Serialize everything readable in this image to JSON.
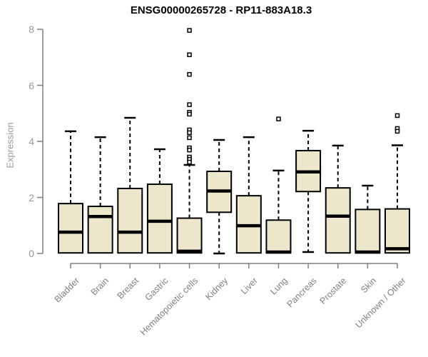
{
  "chart_data": {
    "type": "boxplot",
    "title": "ENSG00000265728 - RP11-883A18.3",
    "ylabel": "Expression",
    "xlabel": "",
    "ylim": [
      0,
      8
    ],
    "yticks": [
      0,
      2,
      4,
      6,
      8
    ],
    "grid": false,
    "legend": null,
    "categories": [
      "Bladder",
      "Brain",
      "Breast",
      "Gastric",
      "Hematopoietic cells",
      "Kidney",
      "Liver",
      "Lung",
      "Pancreas",
      "Prostate",
      "Skin",
      "Unknown / Other"
    ],
    "boxes": [
      {
        "category": "Bladder",
        "whisker_low": 0,
        "q1": 0.02,
        "median": 0.76,
        "q3": 1.78,
        "whisker_high": 4.36,
        "outliers": []
      },
      {
        "category": "Brain",
        "whisker_low": 0,
        "q1": 0.02,
        "median": 1.32,
        "q3": 1.68,
        "whisker_high": 4.15,
        "outliers": []
      },
      {
        "category": "Breast",
        "whisker_low": 0,
        "q1": 0.02,
        "median": 0.76,
        "q3": 2.32,
        "whisker_high": 4.84,
        "outliers": []
      },
      {
        "category": "Gastric",
        "whisker_low": 0,
        "q1": 0.02,
        "median": 1.15,
        "q3": 2.47,
        "whisker_high": 3.72,
        "outliers": []
      },
      {
        "category": "Hematopoietic cells",
        "whisker_low": 0,
        "q1": 0.02,
        "median": 0.08,
        "q3": 1.26,
        "whisker_high": 3.16,
        "outliers": [
          7.96,
          7.09,
          6.39,
          5.31,
          5.04,
          4.97,
          4.41,
          4.31,
          4.13,
          3.77,
          3.69,
          3.44,
          3.36,
          3.26
        ]
      },
      {
        "category": "Kidney",
        "whisker_low": 0,
        "q1": 1.47,
        "median": 2.23,
        "q3": 2.93,
        "whisker_high": 4.05,
        "outliers": []
      },
      {
        "category": "Liver",
        "whisker_low": 0,
        "q1": 0.02,
        "median": 0.99,
        "q3": 2.06,
        "whisker_high": 4.15,
        "outliers": []
      },
      {
        "category": "Lung",
        "whisker_low": 0,
        "q1": 0.02,
        "median": 0.05,
        "q3": 1.19,
        "whisker_high": 2.96,
        "outliers": [
          4.8
        ]
      },
      {
        "category": "Pancreas",
        "whisker_low": 0.05,
        "q1": 2.21,
        "median": 2.91,
        "q3": 3.67,
        "whisker_high": 4.38,
        "outliers": []
      },
      {
        "category": "Prostate",
        "whisker_low": 0,
        "q1": 0.02,
        "median": 1.33,
        "q3": 2.34,
        "whisker_high": 3.85,
        "outliers": []
      },
      {
        "category": "Skin",
        "whisker_low": 0,
        "q1": 0.02,
        "median": 0.05,
        "q3": 1.57,
        "whisker_high": 2.42,
        "outliers": []
      },
      {
        "category": "Unknown / Other",
        "whisker_low": 0,
        "q1": 0.02,
        "median": 0.17,
        "q3": 1.59,
        "whisker_high": 3.86,
        "outliers": [
          4.92,
          4.46,
          4.36
        ]
      }
    ],
    "colors": {
      "box_fill": "#ece7cb",
      "box_border": "#000000",
      "whisker": "#000000",
      "median": "#000000",
      "outlier_fill": "#ffffff",
      "axis": "#7f7f7f",
      "tick_label": "#999999",
      "x_label": "#808080",
      "title": "#000000"
    }
  }
}
